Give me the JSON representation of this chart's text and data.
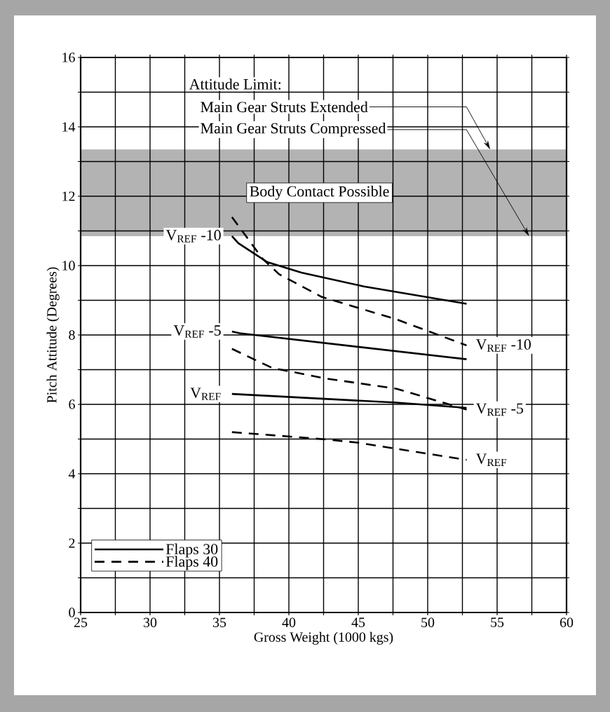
{
  "chart_data": {
    "type": "line",
    "xlabel": "Gross Weight (1000 kgs)",
    "ylabel": "Pitch Attitude (Degrees)",
    "xlim": [
      25,
      60
    ],
    "ylim": [
      0,
      16
    ],
    "xticks": [
      25,
      {
        "value": 27.5,
        "label": null
      },
      30,
      {
        "value": 32.5,
        "label": null
      },
      35,
      {
        "value": 37.5,
        "label": null
      },
      40,
      {
        "value": 42.5,
        "label": null
      },
      45,
      {
        "value": 47.5,
        "label": null
      },
      50,
      {
        "value": 52.5,
        "label": null
      },
      55,
      {
        "value": 57.5,
        "label": null
      },
      60
    ],
    "yticks": [
      0,
      {
        "value": 1,
        "label": null
      },
      2,
      {
        "value": 3,
        "label": null
      },
      4,
      {
        "value": 5,
        "label": null
      },
      6,
      {
        "value": 7,
        "label": null
      },
      8,
      {
        "value": 9,
        "label": null
      },
      10,
      {
        "value": 11,
        "label": null
      },
      12,
      {
        "value": 13,
        "label": null
      },
      14,
      {
        "value": 15,
        "label": null
      },
      16
    ],
    "grid": true,
    "legend": "bottom left",
    "marker": "none",
    "series": [
      {
        "name": "Flaps 30",
        "color": "#000000",
        "line_style": "solid",
        "x": [
          35.9,
          36.35,
          38.45,
          40.9,
          45.4,
          52.8
        ],
        "values": [
          10.85,
          10.65,
          10.1,
          9.8,
          9.4,
          8.9
        ]
      },
      {
        "color": "#000000",
        "line_style": "solid",
        "x": [
          35.9,
          36.45,
          52.8
        ],
        "values": [
          8.1,
          8.05,
          7.3
        ]
      },
      {
        "color": "#000000",
        "line_style": "solid",
        "x": [
          35.9,
          47.75,
          52.8
        ],
        "values": [
          6.3,
          6.05,
          5.9
        ]
      },
      {
        "name": "Flaps 40",
        "color": "#000000",
        "line_style": "dashed",
        "x": [
          35.9,
          38.1,
          39.3,
          42.35,
          47.75,
          52.8
        ],
        "values": [
          11.4,
          10.2,
          9.75,
          9.1,
          8.45,
          7.7
        ]
      },
      {
        "color": "#000000",
        "line_style": "dashed",
        "x": [
          35.9,
          38.8,
          42.6,
          47.75,
          52.8
        ],
        "values": [
          7.6,
          7.05,
          6.75,
          6.45,
          5.85
        ]
      },
      {
        "color": "#000000",
        "line_style": "dashed",
        "x": [
          35.9,
          42.35,
          44.9,
          52.8
        ],
        "values": [
          5.2,
          5.0,
          4.9,
          4.4
        ]
      }
    ],
    "bands": [
      {
        "axis": "y",
        "from": 10.85,
        "to": 13.35,
        "label": "Body Contact Possible",
        "color": "#b3b3b3"
      }
    ],
    "annotations": [
      "Attitude Limit:",
      {
        "text": "Main Gear Struts Extended",
        "x": 54.5,
        "y": 13.35
      },
      {
        "text": "Main Gear Struts Compressed",
        "x": 57.3,
        "y": 10.85
      },
      {
        "text": "V$_{REF}$ -10",
        "x": 35.9,
        "y": 10.85
      },
      {
        "text": "V$_{REF}$ -5",
        "x": 35.9,
        "y": 8.1
      },
      {
        "text": "V$_{REF}$",
        "x": 35.9,
        "y": 6.3
      },
      {
        "text": "V$_{REF}$ -10",
        "x": 52.8,
        "y": 7.7
      },
      {
        "text": "V$_{REF}$ -5",
        "x": 52.8,
        "y": 5.85
      },
      {
        "text": "V$_{REF}$",
        "x": 52.8,
        "y": 4.4
      }
    ]
  }
}
